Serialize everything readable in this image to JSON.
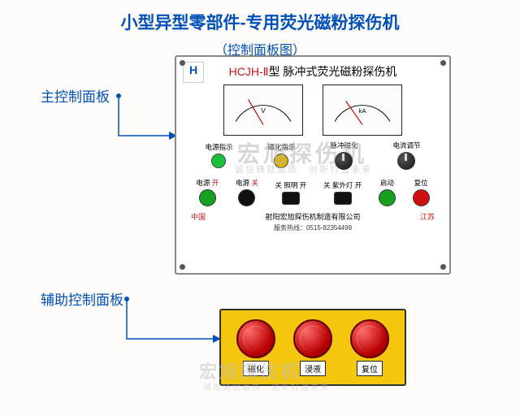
{
  "title": "小型异型零部件-专用荧光磁粉探伤机",
  "subtitle": "（控制面板图）",
  "main_label": "主控制面板",
  "aux_label": "辅助控制面板",
  "panel": {
    "model_prefix": "HCJH-Ⅱ",
    "model_suffix": "型",
    "model_desc": "脉冲式荧光磁粉探伤机",
    "meter_v_unit": "V",
    "meter_a_unit": "kA",
    "row1": [
      {
        "lbl": "电源指示",
        "color": "#17c23a"
      },
      {
        "lbl": "磁化指示",
        "color": "#e0b000"
      },
      {
        "lbl": "脉冲磁化",
        "knob": true
      },
      {
        "lbl": "电流调节",
        "knob": true
      }
    ],
    "row2": [
      {
        "lbl": "电源 开",
        "sub_red": "开",
        "color": "#16a020"
      },
      {
        "lbl": "电源 关",
        "sub_red": "关",
        "color": "#111"
      },
      {
        "lbl": "关 照明 开",
        "color": "#111",
        "flat": true
      },
      {
        "lbl": "关 紫外灯 开",
        "color": "#111",
        "flat": true
      },
      {
        "lbl": "启动",
        "color": "#16a020"
      },
      {
        "lbl": "复位",
        "color": "#d01010"
      }
    ],
    "country": "中国",
    "company": "射阳宏旭探伤机制造有限公司",
    "province": "江苏",
    "service": "服务热线：0515-82354499"
  },
  "aux": {
    "btns": [
      "磁化",
      "浸液",
      "复位"
    ]
  },
  "watermark": {
    "big": "宏旭探伤机",
    "small": "诚信铸就品质　创新打造未来"
  }
}
